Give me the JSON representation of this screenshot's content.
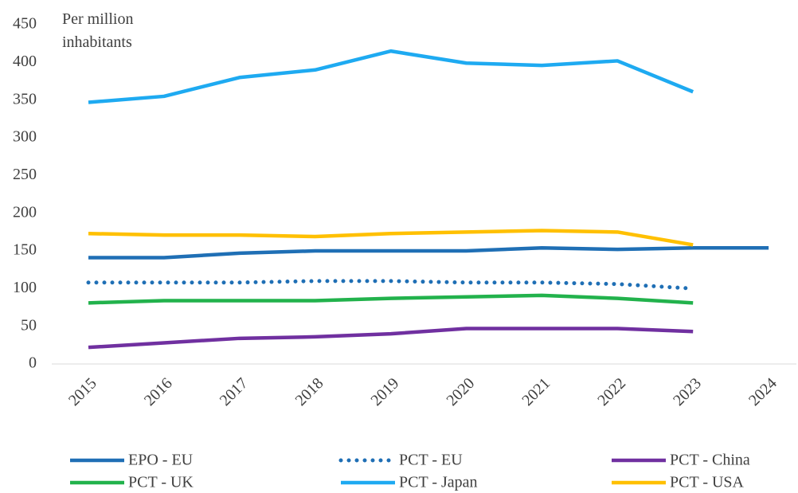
{
  "chart_data": {
    "type": "line",
    "ylabel": "Per million inhabitants",
    "categories": [
      "2015",
      "2016",
      "2017",
      "2018",
      "2019",
      "2020",
      "2021",
      "2022",
      "2023",
      "2024"
    ],
    "series": [
      {
        "name": "EPO - EU",
        "color": "#1f6fb5",
        "values": [
          141,
          141,
          147,
          150,
          150,
          150,
          154,
          152,
          154,
          154
        ]
      },
      {
        "name": "PCT - EU",
        "color": "#1f6fb5",
        "dash": "dotted",
        "values": [
          108,
          108,
          108,
          110,
          110,
          108,
          108,
          106,
          100,
          null
        ]
      },
      {
        "name": "PCT - China",
        "color": "#7030a0",
        "values": [
          22,
          28,
          34,
          36,
          40,
          47,
          47,
          47,
          43,
          null
        ]
      },
      {
        "name": "PCT - UK",
        "color": "#22b24c",
        "values": [
          81,
          84,
          84,
          84,
          87,
          89,
          91,
          87,
          81,
          null
        ]
      },
      {
        "name": "PCT - Japan",
        "color": "#1eaaf1",
        "values": [
          347,
          355,
          380,
          390,
          415,
          399,
          396,
          402,
          361,
          null
        ]
      },
      {
        "name": "PCT - USA",
        "color": "#ffc000",
        "values": [
          173,
          171,
          171,
          169,
          173,
          175,
          177,
          175,
          158,
          null
        ]
      }
    ],
    "ylim": [
      0,
      450
    ],
    "yticks": [
      0,
      50,
      100,
      150,
      200,
      250,
      300,
      350,
      400,
      450
    ],
    "grid": false,
    "legend": "bottom"
  }
}
